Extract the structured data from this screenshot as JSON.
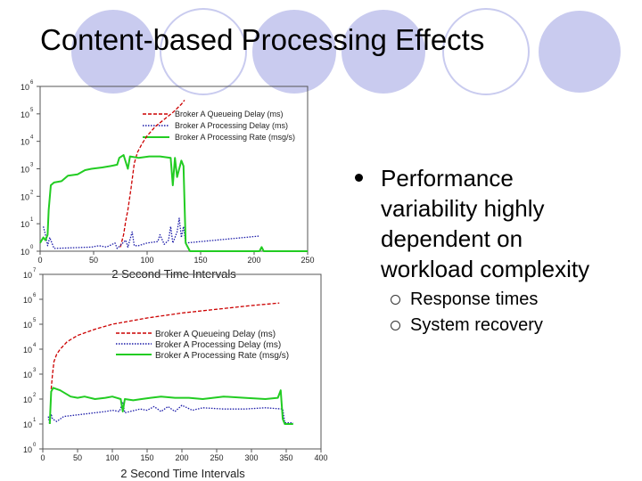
{
  "slide": {
    "title": "Content-based Processing Effects",
    "bullet": "Performance variability highly dependent on workload complexity",
    "subbullets": [
      "Response times",
      "System recovery"
    ]
  },
  "colors": {
    "queueing": "#cc0000",
    "processing_delay": "#1a1aa8",
    "processing_rate": "#22cc22",
    "circle_fill": "#c9cbef"
  },
  "chart_data": [
    {
      "type": "line",
      "log_y": true,
      "xlim": [
        0,
        250
      ],
      "ylim_exp": [
        0,
        6
      ],
      "x_ticks": [
        "0",
        "50",
        "100",
        "150",
        "200",
        "250"
      ],
      "y_ticks": [
        "10",
        "10",
        "10",
        "10",
        "10",
        "10",
        "10"
      ],
      "y_exponents": [
        "0",
        "1",
        "2",
        "3",
        "4",
        "5",
        "6"
      ],
      "xlabel": "2 Second Time Intervals",
      "legend_position": "top-right",
      "series": [
        {
          "name": "Broker A Queueing Delay (ms)",
          "style": "dashed",
          "color_key": "queueing",
          "points": [
            [
              75,
              0.15
            ],
            [
              78,
              0.6
            ],
            [
              80,
              1.1
            ],
            [
              82,
              1.5
            ],
            [
              85,
              2.3
            ],
            [
              88,
              3.2
            ],
            [
              91,
              3.6
            ],
            [
              95,
              3.9
            ],
            [
              100,
              4.2
            ],
            [
              108,
              4.55
            ],
            [
              116,
              4.8
            ],
            [
              124,
              5.05
            ],
            [
              132,
              5.35
            ],
            [
              135,
              5.5
            ]
          ]
        },
        {
          "name": "Broker A Processing Delay (ms)",
          "style": "dotted",
          "color_key": "processing_delay",
          "points": [
            [
              3,
              0.9
            ],
            [
              5,
              0.6
            ],
            [
              7,
              0.2
            ],
            [
              9,
              0.5
            ],
            [
              11,
              0.3
            ],
            [
              13,
              0.1
            ],
            [
              48,
              0.15
            ],
            [
              55,
              0.2
            ],
            [
              62,
              0.15
            ],
            [
              70,
              0.3
            ],
            [
              72,
              0.1
            ],
            [
              80,
              0.4
            ],
            [
              82,
              0.15
            ],
            [
              86,
              0.7
            ],
            [
              88,
              0.2
            ],
            [
              92,
              0.2
            ],
            [
              100,
              0.3
            ],
            [
              110,
              0.35
            ],
            [
              112,
              0.6
            ],
            [
              116,
              0.25
            ],
            [
              120,
              0.4
            ],
            [
              122,
              0.9
            ],
            [
              124,
              0.3
            ],
            [
              128,
              0.7
            ],
            [
              130,
              1.2
            ],
            [
              132,
              0.5
            ],
            [
              134,
              0.9
            ],
            [
              136,
              0.3
            ],
            [
              205,
              0.55
            ]
          ]
        },
        {
          "name": "Broker A Processing Rate (msg/s)",
          "style": "solid",
          "color_key": "processing_rate",
          "points": [
            [
              0,
              0.3
            ],
            [
              3,
              0.5
            ],
            [
              5,
              0.4
            ],
            [
              7,
              0.6
            ],
            [
              8,
              1.5
            ],
            [
              10,
              2.4
            ],
            [
              13,
              2.5
            ],
            [
              20,
              2.55
            ],
            [
              26,
              2.75
            ],
            [
              35,
              2.8
            ],
            [
              42,
              2.95
            ],
            [
              48,
              3.0
            ],
            [
              58,
              3.05
            ],
            [
              66,
              3.1
            ],
            [
              72,
              3.15
            ],
            [
              74,
              3.4
            ],
            [
              78,
              3.5
            ],
            [
              82,
              3.0
            ],
            [
              84,
              3.45
            ],
            [
              92,
              3.4
            ],
            [
              102,
              3.45
            ],
            [
              112,
              3.45
            ],
            [
              122,
              3.4
            ],
            [
              124,
              2.4
            ],
            [
              126,
              3.4
            ],
            [
              128,
              2.7
            ],
            [
              132,
              3.3
            ],
            [
              134,
              3.1
            ],
            [
              136,
              0.3
            ],
            [
              140,
              0.0
            ],
            [
              170,
              0.0
            ],
            [
              205,
              0.0
            ],
            [
              207,
              0.15
            ],
            [
              209,
              0.0
            ],
            [
              250,
              0.0
            ]
          ]
        }
      ]
    },
    {
      "type": "line",
      "log_y": true,
      "xlim": [
        0,
        400
      ],
      "ylim_exp": [
        0,
        7
      ],
      "x_ticks": [
        "0",
        "50",
        "100",
        "150",
        "200",
        "250",
        "300",
        "350",
        "400"
      ],
      "y_ticks": [
        "10",
        "10",
        "10",
        "10",
        "10",
        "10",
        "10",
        "10"
      ],
      "y_exponents": [
        "0",
        "1",
        "2",
        "3",
        "4",
        "5",
        "6",
        "7"
      ],
      "xlabel": "2 Second Time Intervals",
      "legend_position": "center-right",
      "series": [
        {
          "name": "Broker A Queueing Delay (ms)",
          "style": "dashed",
          "color_key": "queueing",
          "points": [
            [
              12,
              2.4
            ],
            [
              14,
              3.0
            ],
            [
              16,
              3.5
            ],
            [
              20,
              3.8
            ],
            [
              25,
              4.0
            ],
            [
              35,
              4.3
            ],
            [
              50,
              4.55
            ],
            [
              75,
              4.8
            ],
            [
              100,
              5.0
            ],
            [
              150,
              5.25
            ],
            [
              200,
              5.45
            ],
            [
              250,
              5.6
            ],
            [
              300,
              5.75
            ],
            [
              340,
              5.85
            ]
          ]
        },
        {
          "name": "Broker A Processing Delay (ms)",
          "style": "dotted",
          "color_key": "processing_delay",
          "points": [
            [
              8,
              1.3
            ],
            [
              10,
              1.0
            ],
            [
              12,
              1.4
            ],
            [
              14,
              1.2
            ],
            [
              20,
              1.1
            ],
            [
              30,
              1.3
            ],
            [
              45,
              1.35
            ],
            [
              60,
              1.4
            ],
            [
              75,
              1.45
            ],
            [
              90,
              1.5
            ],
            [
              100,
              1.55
            ],
            [
              110,
              1.5
            ],
            [
              115,
              1.85
            ],
            [
              118,
              1.45
            ],
            [
              140,
              1.6
            ],
            [
              150,
              1.55
            ],
            [
              160,
              1.7
            ],
            [
              170,
              1.5
            ],
            [
              180,
              1.7
            ],
            [
              190,
              1.5
            ],
            [
              200,
              1.75
            ],
            [
              215,
              1.55
            ],
            [
              230,
              1.65
            ],
            [
              260,
              1.6
            ],
            [
              290,
              1.6
            ],
            [
              320,
              1.65
            ],
            [
              345,
              1.6
            ],
            [
              348,
              1.05
            ],
            [
              360,
              1.05
            ]
          ]
        },
        {
          "name": "Broker A Processing Rate (msg/s)",
          "style": "solid",
          "color_key": "processing_rate",
          "points": [
            [
              10,
              1.0
            ],
            [
              12,
              2.3
            ],
            [
              15,
              2.45
            ],
            [
              25,
              2.35
            ],
            [
              40,
              2.1
            ],
            [
              50,
              2.05
            ],
            [
              60,
              2.1
            ],
            [
              75,
              2.0
            ],
            [
              90,
              2.05
            ],
            [
              100,
              2.1
            ],
            [
              112,
              2.0
            ],
            [
              115,
              1.5
            ],
            [
              118,
              2.0
            ],
            [
              130,
              1.95
            ],
            [
              142,
              2.0
            ],
            [
              155,
              2.05
            ],
            [
              170,
              2.1
            ],
            [
              190,
              2.05
            ],
            [
              210,
              2.05
            ],
            [
              230,
              2.0
            ],
            [
              260,
              2.1
            ],
            [
              290,
              2.05
            ],
            [
              320,
              2.0
            ],
            [
              338,
              2.05
            ],
            [
              342,
              2.35
            ],
            [
              345,
              1.2
            ],
            [
              348,
              1.0
            ],
            [
              360,
              1.0
            ]
          ]
        }
      ]
    }
  ]
}
